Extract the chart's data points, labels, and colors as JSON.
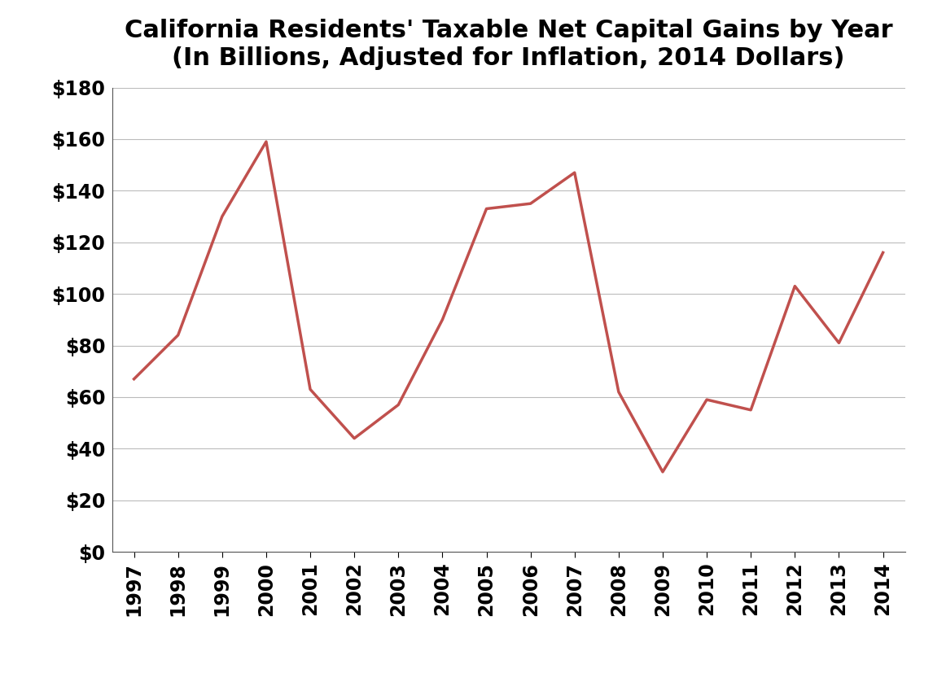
{
  "title": "California Residents' Taxable Net Capital Gains by Year\n(In Billions, Adjusted for Inflation, 2014 Dollars)",
  "years": [
    1997,
    1998,
    1999,
    2000,
    2001,
    2002,
    2003,
    2004,
    2005,
    2006,
    2007,
    2008,
    2009,
    2010,
    2011,
    2012,
    2013,
    2014
  ],
  "values": [
    67,
    84,
    130,
    159,
    63,
    44,
    57,
    90,
    133,
    135,
    147,
    62,
    31,
    59,
    55,
    103,
    81,
    116
  ],
  "line_color": "#c0504d",
  "line_width": 2.5,
  "ylim": [
    0,
    180
  ],
  "ytick_step": 20,
  "background_color": "#ffffff",
  "grid_color": "#bbbbbb",
  "title_fontsize": 22,
  "tick_fontsize": 17,
  "xlabel": "",
  "ylabel": ""
}
